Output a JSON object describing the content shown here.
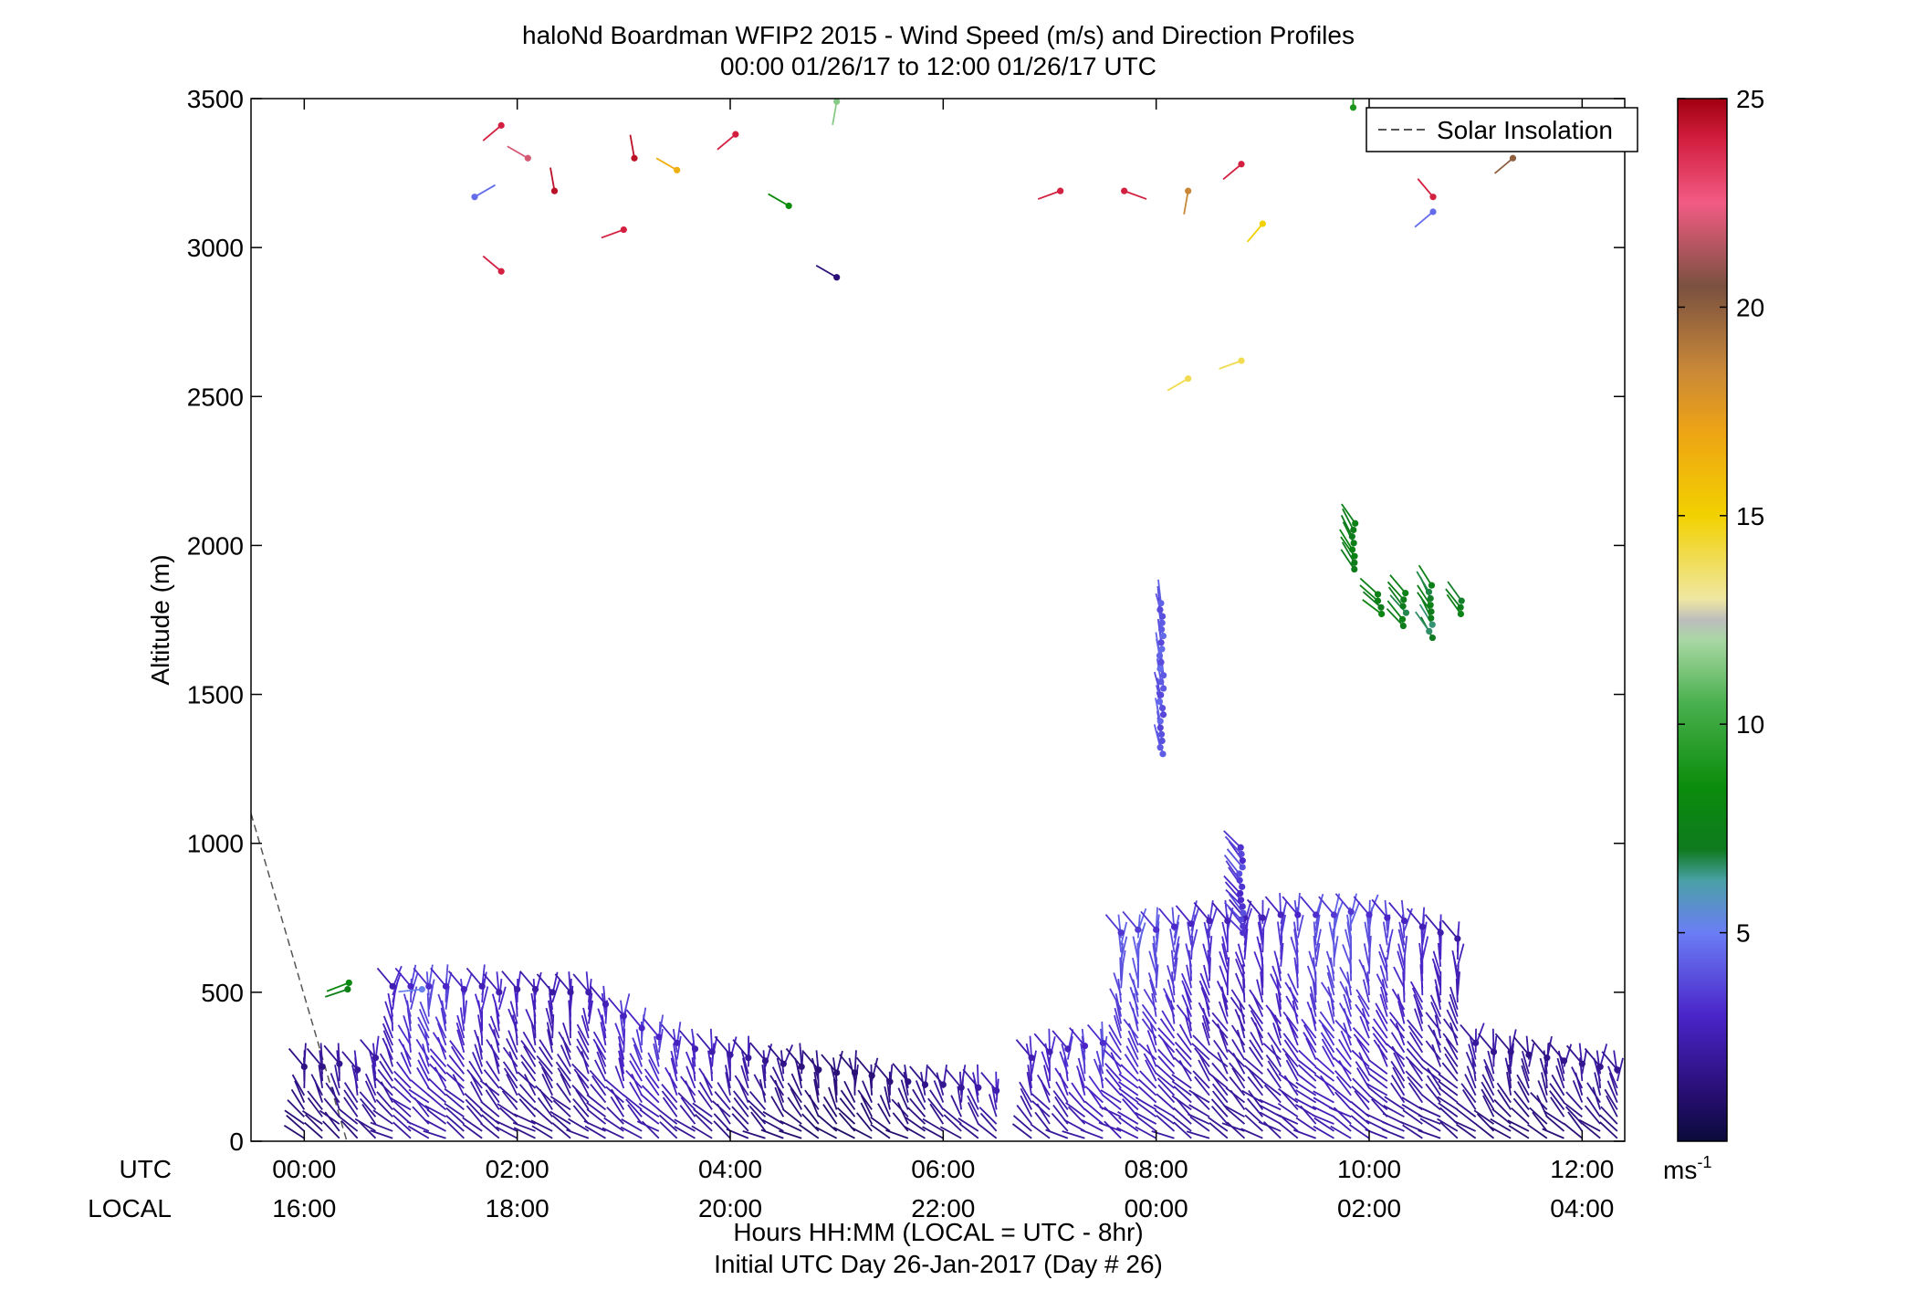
{
  "chart_data": {
    "type": "scatter",
    "title": "haloNd Boardman WFIP2 2015 - Wind Speed (m/s) and Direction Profiles",
    "subtitle": "00:00 01/26/17 to 12:00 01/26/17  UTC",
    "ylabel": "Altitude (m)",
    "ylim": [
      0,
      3500
    ],
    "yticks": [
      "0",
      "500",
      "1000",
      "1500",
      "2000",
      "2500",
      "3000",
      "3500"
    ],
    "xlim": [
      -0.5,
      12.4
    ],
    "xticks_utc": [
      "00:00",
      "02:00",
      "04:00",
      "06:00",
      "08:00",
      "10:00",
      "12:00"
    ],
    "xticks_local": [
      "16:00",
      "18:00",
      "20:00",
      "22:00",
      "00:00",
      "02:00",
      "04:00"
    ],
    "xticks_hours": [
      0,
      2,
      4,
      6,
      8,
      10,
      12
    ],
    "utc_label": "UTC",
    "local_label": "LOCAL",
    "xlabel": "Hours HH:MM  (LOCAL = UTC - 8hr)",
    "xlabel2": "Initial UTC Day 26-Jan-2017 (Day # 26)",
    "legend": {
      "entry": "Solar Insolation",
      "placement": "top-right"
    },
    "grid": false,
    "colorbar": {
      "ticks": [
        "5",
        "10",
        "15",
        "20",
        "25"
      ],
      "tick_values": [
        5,
        10,
        15,
        20,
        25
      ],
      "range": [
        0,
        25
      ],
      "unit_base": "ms",
      "unit_exp": "-1"
    },
    "solar_insolation": [
      [
        -0.5,
        1100
      ],
      [
        0.4,
        0
      ]
    ],
    "profile_times": [
      0.0,
      0.17,
      0.33,
      0.5,
      0.67,
      0.83,
      1.0,
      1.17,
      1.33,
      1.5,
      1.67,
      1.83,
      2.0,
      2.17,
      2.33,
      2.5,
      2.67,
      2.83,
      3.0,
      3.17,
      3.33,
      3.5,
      3.67,
      3.83,
      4.0,
      4.17,
      4.33,
      4.5,
      4.67,
      4.83,
      5.0,
      5.17,
      5.33,
      5.5,
      5.67,
      5.83,
      6.0,
      6.17,
      6.33,
      6.5,
      6.83,
      7.0,
      7.17,
      7.33,
      7.5,
      7.67,
      7.83,
      8.0,
      8.17,
      8.33,
      8.5,
      8.67,
      8.83,
      9.0,
      9.17,
      9.33,
      9.5,
      9.67,
      9.83,
      10.0,
      10.17,
      10.33,
      10.5,
      10.67,
      10.83,
      11.0,
      11.17,
      11.33,
      11.5,
      11.67,
      11.83,
      12.0,
      12.17,
      12.33
    ],
    "profile_tops_m": [
      250,
      250,
      260,
      240,
      280,
      520,
      520,
      520,
      520,
      510,
      520,
      500,
      510,
      510,
      500,
      500,
      500,
      460,
      420,
      380,
      350,
      330,
      310,
      300,
      290,
      280,
      270,
      260,
      250,
      240,
      230,
      230,
      220,
      200,
      200,
      190,
      190,
      180,
      180,
      170,
      280,
      300,
      310,
      320,
      330,
      700,
      710,
      710,
      720,
      730,
      740,
      740,
      750,
      750,
      760,
      760,
      760,
      760,
      770,
      760,
      750,
      740,
      720,
      700,
      680,
      330,
      300,
      300,
      290,
      280,
      270,
      260,
      250,
      240
    ],
    "profile_speed_ms": [
      1.5,
      1.6,
      1.8,
      2.0,
      2.2,
      2.5,
      3.0,
      3.2,
      3.0,
      2.8,
      2.6,
      2.5,
      2.4,
      2.3,
      2.2,
      2.2,
      2.4,
      2.6,
      2.8,
      3.0,
      3.0,
      2.8,
      2.6,
      2.4,
      2.2,
      2.0,
      1.8,
      1.6,
      1.4,
      1.3,
      1.2,
      1.2,
      1.3,
      1.4,
      1.5,
      1.6,
      1.8,
      2.0,
      2.2,
      2.4,
      2.5,
      2.6,
      2.8,
      3.0,
      3.2,
      3.4,
      3.5,
      3.3,
      3.1,
      2.9,
      2.7,
      2.6,
      2.5,
      2.6,
      2.8,
      3.0,
      3.2,
      3.4,
      3.4,
      3.2,
      3.0,
      2.8,
      2.6,
      2.4,
      2.2,
      2.0,
      1.8,
      1.7,
      1.6,
      1.6,
      1.7,
      1.8,
      1.8,
      1.8
    ],
    "clusters": [
      {
        "t": 8.05,
        "alt": [
          1300,
          1810
        ],
        "speed": 4.2,
        "dir": 350
      },
      {
        "t": 9.85,
        "alt": [
          1920,
          2080
        ],
        "speed": 7.5,
        "dir": 330
      },
      {
        "t": 10.1,
        "alt": [
          1770,
          1840
        ],
        "speed": 7.5,
        "dir": 310
      },
      {
        "t": 10.33,
        "alt": [
          1730,
          1860
        ],
        "speed": 7.2,
        "dir": 320
      },
      {
        "t": 10.58,
        "alt": [
          1690,
          1870
        ],
        "speed": 7.0,
        "dir": 330
      },
      {
        "t": 10.85,
        "alt": [
          1770,
          1830
        ],
        "speed": 7.3,
        "dir": 320
      },
      {
        "t": 8.8,
        "alt": [
          700,
          1000
        ],
        "speed": 3.5,
        "dir": 320
      },
      {
        "t": 0.4,
        "alt": [
          510,
          540
        ],
        "speed": 7.8,
        "dir": 250
      },
      {
        "t": 1.1,
        "alt": [
          510,
          530
        ],
        "speed": 5.0,
        "dir": 260
      }
    ],
    "points": [
      {
        "t": 1.85,
        "alt": 3410,
        "speed": 24.0,
        "dir": 230
      },
      {
        "t": 2.1,
        "alt": 3300,
        "speed": 22.0,
        "dir": 300
      },
      {
        "t": 2.35,
        "alt": 3190,
        "speed": 24.5,
        "dir": 350
      },
      {
        "t": 3.1,
        "alt": 3300,
        "speed": 24.5,
        "dir": 350
      },
      {
        "t": 3.5,
        "alt": 3260,
        "speed": 16.5,
        "dir": 300
      },
      {
        "t": 4.05,
        "alt": 3380,
        "speed": 24.0,
        "dir": 230
      },
      {
        "t": 4.55,
        "alt": 3140,
        "speed": 8.5,
        "dir": 300
      },
      {
        "t": 5.0,
        "alt": 3490,
        "speed": 11.5,
        "dir": 190
      },
      {
        "t": 1.6,
        "alt": 3170,
        "speed": 4.6,
        "dir": 60
      },
      {
        "t": 3.0,
        "alt": 3060,
        "speed": 24.0,
        "dir": 250
      },
      {
        "t": 1.85,
        "alt": 2920,
        "speed": 24.0,
        "dir": 310
      },
      {
        "t": 5.0,
        "alt": 2900,
        "speed": 1.2,
        "dir": 300
      },
      {
        "t": 7.1,
        "alt": 3190,
        "speed": 24.0,
        "dir": 250
      },
      {
        "t": 7.7,
        "alt": 3190,
        "speed": 24.0,
        "dir": 110
      },
      {
        "t": 8.3,
        "alt": 3190,
        "speed": 18.5,
        "dir": 190
      },
      {
        "t": 8.8,
        "alt": 3280,
        "speed": 24.0,
        "dir": 230
      },
      {
        "t": 9.0,
        "alt": 3080,
        "speed": 15.0,
        "dir": 220
      },
      {
        "t": 9.85,
        "alt": 3470,
        "speed": 9.0,
        "dir": 0
      },
      {
        "t": 10.6,
        "alt": 3170,
        "speed": 24.0,
        "dir": 320
      },
      {
        "t": 10.6,
        "alt": 3120,
        "speed": 4.6,
        "dir": 230
      },
      {
        "t": 11.35,
        "alt": 3300,
        "speed": 20.0,
        "dir": 230
      },
      {
        "t": 8.3,
        "alt": 2560,
        "speed": 14.0,
        "dir": 240
      },
      {
        "t": 8.8,
        "alt": 2620,
        "speed": 14.0,
        "dir": 250
      }
    ]
  }
}
